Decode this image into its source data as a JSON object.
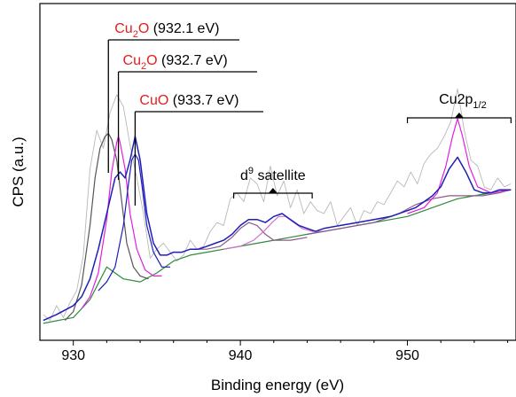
{
  "chart_data": {
    "type": "line",
    "xlabel": "Binding energy (eV)",
    "ylabel": "CPS (a.u.)",
    "xlim": [
      928,
      956.5
    ],
    "ylim": [
      0,
      100
    ],
    "x_ticks": [
      930,
      940,
      950
    ],
    "y_ticks_visible": false,
    "grid": false,
    "annotations": [
      {
        "prefix": "Cu",
        "sub": "2",
        "suffix": "O",
        "value": " (932.1 eV)",
        "x": 932.1
      },
      {
        "prefix": "Cu",
        "sub": "2",
        "suffix": "O",
        "value": " (932.7 eV)",
        "x": 932.7
      },
      {
        "prefix": "Cu",
        "sub": "",
        "suffix": "O",
        "value": " (933.7 eV)",
        "x": 933.7
      }
    ],
    "satellite_label": {
      "base": "d",
      "sup": "9",
      "rest": " satellite",
      "range": [
        939.6,
        944.3
      ]
    },
    "cu2p12_label": {
      "base": "Cu2p",
      "sub": "1/2",
      "range": [
        950.0,
        956.2
      ]
    },
    "series": [
      {
        "role": "raw",
        "color": "#b8b8b8",
        "x": [
          928.2,
          928.6,
          929.0,
          929.4,
          929.8,
          930.2,
          930.6,
          931.0,
          931.4,
          931.8,
          932.2,
          932.6,
          933.0,
          933.4,
          933.8,
          934.2,
          934.6,
          935.0,
          935.4,
          935.8,
          936.2,
          936.6,
          937.0,
          937.4,
          937.8,
          938.2,
          938.6,
          939.0,
          939.4,
          939.8,
          940.2,
          940.6,
          941.0,
          941.4,
          941.8,
          942.2,
          942.6,
          943.0,
          943.4,
          943.8,
          944.2,
          944.6,
          945.0,
          945.4,
          945.8,
          946.2,
          946.6,
          947.0,
          947.4,
          947.8,
          948.2,
          948.6,
          949.0,
          949.4,
          949.8,
          950.2,
          950.6,
          951.0,
          951.4,
          951.8,
          952.2,
          952.6,
          953.0,
          953.4,
          953.8,
          954.2,
          954.6,
          955.0,
          955.4,
          955.8,
          956.2
        ],
        "y": [
          6,
          4,
          9,
          5,
          10,
          14,
          26,
          55,
          68,
          62,
          74,
          80,
          76,
          63,
          52,
          40,
          25,
          28,
          30,
          27,
          24,
          26,
          31,
          28,
          29,
          34,
          37,
          36,
          45,
          47,
          44,
          52,
          50,
          44,
          56,
          46,
          51,
          42,
          48,
          40,
          44,
          41,
          40,
          44,
          36,
          39,
          42,
          36,
          41,
          40,
          44,
          43,
          47,
          51,
          49,
          54,
          50,
          57,
          60,
          62,
          66,
          71,
          82,
          68,
          58,
          56,
          49,
          48,
          52,
          49,
          50
        ]
      },
      {
        "role": "background",
        "color": "#2e8b3a",
        "x": [
          928.2,
          930.0,
          931.0,
          932.0,
          933.0,
          934.0,
          935.0,
          936.0,
          937.0,
          938.0,
          939.0,
          940.0,
          941.0,
          942.0,
          943.0,
          944.0,
          945.0,
          946.0,
          947.0,
          948.0,
          949.0,
          950.0,
          951.0,
          952.0,
          953.0,
          954.0,
          955.0,
          956.2
        ],
        "y": [
          3,
          5,
          11,
          22,
          18,
          17,
          20,
          24,
          26,
          27,
          28,
          29,
          30,
          31,
          32,
          33,
          34,
          35,
          36,
          37,
          38,
          39,
          41,
          43,
          45,
          46,
          47,
          48
        ]
      },
      {
        "role": "envelope",
        "color": "#1e1eb8",
        "x": [
          928.2,
          929.0,
          930.0,
          930.5,
          931.0,
          931.5,
          932.0,
          932.5,
          932.8,
          933.1,
          933.4,
          933.7,
          934.0,
          934.4,
          934.8,
          935.2,
          935.6,
          936.0,
          936.5,
          937.0,
          937.5,
          938.0,
          938.5,
          939.0,
          939.5,
          940.0,
          940.5,
          941.0,
          941.5,
          942.0,
          942.5,
          943.0,
          943.5,
          944.0,
          944.5,
          945.0,
          946.0,
          947.0,
          948.0,
          949.0,
          950.0,
          950.5,
          951.0,
          951.5,
          952.0,
          952.5,
          953.0,
          953.5,
          954.0,
          954.5,
          955.0,
          955.5,
          956.2
        ],
        "y": [
          4,
          6,
          9,
          12,
          18,
          28,
          40,
          52,
          54,
          52,
          58,
          66,
          58,
          40,
          30,
          26,
          26,
          27,
          27,
          28,
          28,
          29,
          30,
          31,
          33,
          36,
          38,
          38,
          37,
          39,
          40,
          38,
          36,
          35,
          34,
          35,
          36,
          37,
          38,
          39,
          41,
          42,
          44,
          46,
          49,
          55,
          59,
          54,
          48,
          47,
          47,
          48,
          48
        ]
      },
      {
        "role": "peak",
        "name": "Cu2O (932.1 eV)",
        "color": "#555555",
        "x": [
          929.5,
          930.0,
          930.5,
          931.0,
          931.3,
          931.6,
          931.9,
          932.1,
          932.3,
          932.6,
          932.9,
          933.2,
          933.6,
          934.0,
          934.5
        ],
        "y": [
          4,
          7,
          16,
          36,
          52,
          62,
          66,
          67,
          65,
          58,
          44,
          30,
          22,
          19,
          18
        ]
      },
      {
        "role": "peak",
        "name": "Cu2O (932.7 eV)",
        "color": "#e020e0",
        "x": [
          930.5,
          931.0,
          931.5,
          932.0,
          932.3,
          932.6,
          932.7,
          932.8,
          933.1,
          933.4,
          933.8,
          934.3,
          934.8,
          935.3
        ],
        "y": [
          8,
          12,
          20,
          38,
          54,
          64,
          66,
          64,
          55,
          40,
          28,
          21,
          19,
          19
        ]
      },
      {
        "role": "peak",
        "name": "CuO (933.7 eV)",
        "color": "#1e1eb8",
        "x": [
          931.5,
          932.0,
          932.5,
          933.0,
          933.3,
          933.5,
          933.7,
          933.9,
          934.1,
          934.4,
          934.8,
          935.3,
          935.8
        ],
        "y": [
          14,
          17,
          22,
          36,
          50,
          58,
          60,
          58,
          50,
          36,
          27,
          22,
          22
        ]
      },
      {
        "role": "peak",
        "name": "satellite-1",
        "color": "#8b5a8b",
        "x": [
          937.0,
          938.0,
          938.8,
          939.5,
          940.0,
          940.5,
          941.0,
          941.5,
          942.0,
          943.0,
          944.0
        ],
        "y": [
          28,
          28,
          29,
          32,
          35,
          37,
          36,
          33,
          31,
          31,
          32
        ]
      },
      {
        "role": "peak",
        "name": "satellite-2",
        "color": "#d070d0",
        "x": [
          939.0,
          940.0,
          940.8,
          941.4,
          941.9,
          942.3,
          942.7,
          943.2,
          943.7,
          944.3,
          945.0,
          946.0
        ],
        "y": [
          28,
          29,
          31,
          34,
          37,
          39,
          39,
          37,
          35,
          34,
          34,
          35
        ]
      },
      {
        "role": "peak",
        "name": "cu2p-broad",
        "color": "#8b5a8b",
        "x": [
          944.0,
          946.0,
          948.0,
          949.5,
          950.5,
          951.5,
          952.5,
          953.5,
          954.5,
          955.5,
          956.2
        ],
        "y": [
          33,
          35,
          37,
          40,
          43,
          45,
          46,
          46,
          46,
          47,
          48
        ]
      },
      {
        "role": "peak",
        "name": "cu2p-sharp",
        "color": "#e020e0",
        "x": [
          950.0,
          951.0,
          951.8,
          952.3,
          952.7,
          953.0,
          953.3,
          953.7,
          954.2,
          955.0,
          956.2
        ],
        "y": [
          40,
          42,
          47,
          56,
          66,
          72,
          66,
          56,
          49,
          47,
          48
        ]
      }
    ]
  }
}
